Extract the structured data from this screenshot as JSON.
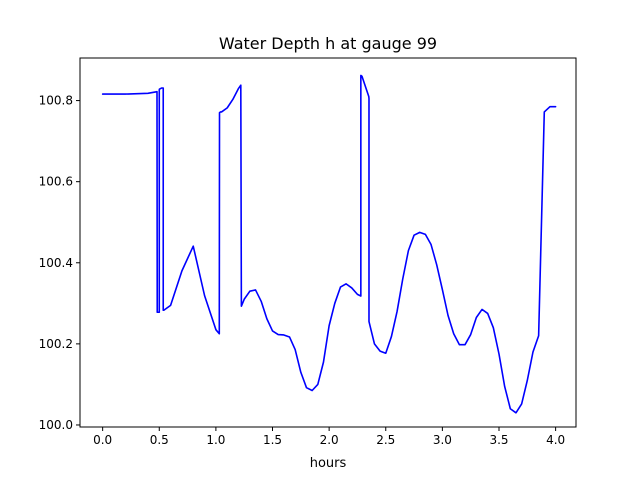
{
  "chart_data": {
    "type": "line",
    "title": "Water Depth h at gauge 99",
    "xlabel": "hours",
    "ylabel": "",
    "xlim": [
      -0.2,
      4.18
    ],
    "ylim": [
      99.995,
      100.905
    ],
    "x_ticks": [
      0.0,
      0.5,
      1.0,
      1.5,
      2.0,
      2.5,
      3.0,
      3.5,
      4.0
    ],
    "x_tick_labels": [
      "0.0",
      "0.5",
      "1.0",
      "1.5",
      "2.0",
      "2.5",
      "3.0",
      "3.5",
      "4.0"
    ],
    "y_ticks": [
      100.0,
      100.2,
      100.4,
      100.6,
      100.8
    ],
    "y_tick_labels": [
      "100.0",
      "100.2",
      "100.4",
      "100.6",
      "100.8"
    ],
    "grid": false,
    "colors": {
      "line": "#0000ff"
    },
    "series": [
      {
        "x": [
          0.0,
          0.2,
          0.4,
          0.48,
          0.482,
          0.5,
          0.5,
          0.501,
          0.52,
          0.53,
          0.535,
          0.535,
          0.54,
          0.6,
          0.7,
          0.8,
          0.9,
          1.0,
          1.03,
          1.032,
          1.04,
          1.05,
          1.1,
          1.15,
          1.2,
          1.22,
          1.225,
          1.25,
          1.3,
          1.35,
          1.4,
          1.45,
          1.5,
          1.55,
          1.6,
          1.65,
          1.7,
          1.75,
          1.8,
          1.85,
          1.9,
          1.95,
          2.0,
          2.05,
          2.1,
          2.15,
          2.2,
          2.25,
          2.28,
          2.28,
          2.29,
          2.35,
          2.352,
          2.352,
          2.4,
          2.45,
          2.5,
          2.55,
          2.6,
          2.65,
          2.7,
          2.75,
          2.8,
          2.85,
          2.9,
          2.95,
          3.0,
          3.05,
          3.1,
          3.15,
          3.2,
          3.25,
          3.3,
          3.35,
          3.4,
          3.45,
          3.5,
          3.55,
          3.6,
          3.65,
          3.7,
          3.75,
          3.8,
          3.85,
          3.9,
          3.95,
          3.985,
          3.987,
          3.995,
          4.0
        ],
        "y": [
          100.816,
          100.816,
          100.818,
          100.822,
          100.278,
          100.278,
          100.826,
          100.828,
          100.831,
          100.831,
          100.831,
          100.283,
          100.283,
          100.295,
          100.38,
          100.441,
          100.319,
          100.235,
          100.225,
          100.77,
          100.772,
          100.772,
          100.782,
          100.803,
          100.83,
          100.838,
          100.293,
          100.31,
          100.33,
          100.333,
          100.305,
          100.262,
          100.232,
          100.223,
          100.222,
          100.217,
          100.186,
          100.13,
          100.092,
          100.085,
          100.1,
          100.155,
          100.245,
          100.3,
          100.34,
          100.348,
          100.338,
          100.322,
          100.318,
          100.862,
          100.86,
          100.81,
          100.805,
          100.255,
          100.2,
          100.182,
          100.177,
          100.218,
          100.28,
          100.36,
          100.43,
          100.468,
          100.475,
          100.47,
          100.445,
          100.395,
          100.334,
          100.27,
          100.225,
          100.198,
          100.198,
          100.223,
          100.265,
          100.285,
          100.275,
          100.24,
          100.175,
          100.095,
          100.04,
          100.03,
          100.052,
          100.11,
          100.18,
          100.22,
          100.772,
          100.785,
          100.785,
          100.785,
          100.785,
          100.785
        ]
      }
    ]
  }
}
